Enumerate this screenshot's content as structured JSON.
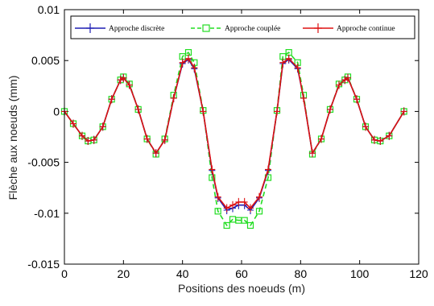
{
  "chart_data": {
    "type": "line",
    "title": "",
    "xlabel": "Positions des noeuds (m)",
    "ylabel": "Flèche aux noeuds (mm)",
    "xlim": [
      0,
      120
    ],
    "ylim": [
      -0.015,
      0.01
    ],
    "xticks": [
      0,
      20,
      40,
      60,
      80,
      100,
      120
    ],
    "xtick_labels": [
      "0",
      "20",
      "40",
      "60",
      "80",
      "100",
      "120"
    ],
    "yticks": [
      0.01,
      0.005,
      0,
      -0.005,
      -0.01,
      -0.015
    ],
    "ytick_labels": [
      "0.01",
      "0.005",
      "0",
      "-0.005",
      "-0.01",
      "-0.015"
    ],
    "grid": false,
    "legend_position": "top",
    "colors": {
      "discrete": "#1f1fb4",
      "coupled": "#22dd22",
      "continuous": "#dd1111"
    },
    "series": [
      {
        "name": "Approche discrète",
        "marker": "plus",
        "line_style": "solid",
        "x": [
          0,
          3,
          6,
          8,
          10,
          13,
          16,
          19,
          20,
          22,
          25,
          28,
          31,
          34,
          37,
          40,
          42,
          44,
          47,
          50,
          52,
          55,
          57,
          59,
          61,
          63,
          66,
          69,
          72,
          74,
          76,
          79,
          81,
          84,
          87,
          90,
          93,
          95,
          96,
          99,
          102,
          105,
          107,
          110,
          115
        ],
        "y": [
          0.0,
          -0.0012,
          -0.0024,
          -0.0029,
          -0.0028,
          -0.0015,
          0.0012,
          0.0031,
          0.0033,
          0.0026,
          0.0002,
          -0.0027,
          -0.0041,
          -0.0028,
          0.0013,
          0.0047,
          0.0051,
          0.0042,
          0.0,
          -0.0058,
          -0.0085,
          -0.0097,
          -0.0095,
          -0.0092,
          -0.0092,
          -0.0097,
          -0.0085,
          -0.0058,
          0.0,
          0.0047,
          0.0051,
          0.0042,
          0.0013,
          -0.0041,
          -0.0027,
          0.0002,
          0.0026,
          0.0031,
          0.0033,
          0.0012,
          -0.0015,
          -0.0028,
          -0.0029,
          -0.0024,
          0.0
        ]
      },
      {
        "name": "Approche couplée",
        "marker": "square",
        "line_style": "dashed",
        "x": [
          0,
          3,
          6,
          8,
          10,
          13,
          16,
          19,
          20,
          22,
          25,
          28,
          31,
          34,
          37,
          40,
          42,
          44,
          47,
          50,
          52,
          55,
          57,
          59,
          61,
          63,
          66,
          69,
          72,
          74,
          76,
          79,
          81,
          84,
          87,
          90,
          93,
          95,
          96,
          99,
          102,
          105,
          107,
          110,
          115
        ],
        "y": [
          0.0,
          -0.0012,
          -0.0024,
          -0.0029,
          -0.0028,
          -0.0015,
          0.0012,
          0.0031,
          0.0034,
          0.0027,
          0.0002,
          -0.0027,
          -0.0042,
          -0.0027,
          0.0016,
          0.0054,
          0.0058,
          0.0048,
          0.0001,
          -0.0065,
          -0.0098,
          -0.0112,
          -0.0106,
          -0.0107,
          -0.0107,
          -0.0112,
          -0.0098,
          -0.0065,
          0.0001,
          0.0054,
          0.0058,
          0.0048,
          0.0016,
          -0.0042,
          -0.0027,
          0.0002,
          0.0027,
          0.0031,
          0.0034,
          0.0012,
          -0.0015,
          -0.0028,
          -0.0029,
          -0.0024,
          0.0
        ]
      },
      {
        "name": "Approche continue",
        "marker": "plus",
        "line_style": "solid",
        "x": [
          0,
          3,
          6,
          8,
          10,
          13,
          16,
          19,
          20,
          22,
          25,
          28,
          31,
          34,
          37,
          40,
          42,
          44,
          47,
          50,
          52,
          55,
          57,
          59,
          61,
          63,
          66,
          69,
          72,
          74,
          76,
          79,
          81,
          84,
          87,
          90,
          93,
          95,
          96,
          99,
          102,
          105,
          107,
          110,
          115
        ],
        "y": [
          0.0,
          -0.0012,
          -0.0024,
          -0.0029,
          -0.0028,
          -0.0015,
          0.0012,
          0.0031,
          0.0033,
          0.0026,
          0.0002,
          -0.0027,
          -0.0041,
          -0.0028,
          0.0013,
          0.0048,
          0.0052,
          0.0043,
          0.0,
          -0.0057,
          -0.0084,
          -0.0095,
          -0.0092,
          -0.0089,
          -0.0089,
          -0.0095,
          -0.0084,
          -0.0057,
          0.0,
          0.0048,
          0.0052,
          0.0043,
          0.0013,
          -0.0041,
          -0.0027,
          0.0002,
          0.0026,
          0.0031,
          0.0033,
          0.0012,
          -0.0015,
          -0.0028,
          -0.0029,
          -0.0024,
          0.0
        ]
      }
    ]
  }
}
